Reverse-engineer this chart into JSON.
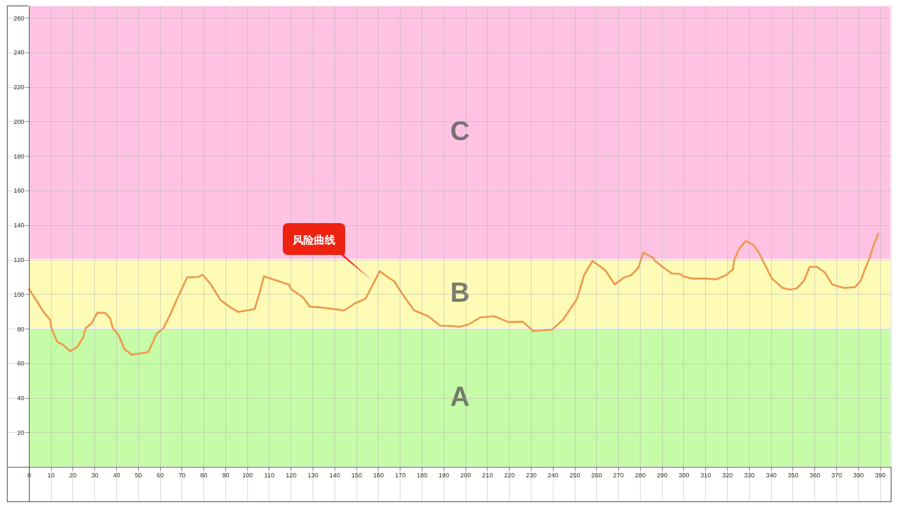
{
  "chart_data": {
    "type": "line",
    "xlim": [
      -10,
      395
    ],
    "ylim": [
      -20,
      267
    ],
    "xticks": [
      0,
      10,
      20,
      30,
      40,
      50,
      60,
      70,
      80,
      90,
      100,
      110,
      120,
      130,
      140,
      150,
      160,
      170,
      180,
      190,
      200,
      210,
      220,
      230,
      240,
      250,
      260,
      270,
      280,
      290,
      300,
      310,
      320,
      330,
      340,
      350,
      360,
      370,
      380,
      390
    ],
    "yticks": [
      20,
      40,
      60,
      80,
      100,
      120,
      140,
      160,
      180,
      200,
      220,
      240,
      260
    ],
    "grid": true,
    "marker": "none",
    "line_style": "solid",
    "bands": [
      {
        "axis": "y",
        "from": 0,
        "to": 80,
        "label": "A",
        "color": "#c6fba8"
      },
      {
        "axis": "y",
        "from": 80,
        "to": 120,
        "label": "B",
        "color": "#fdfbb6"
      },
      {
        "axis": "y",
        "from": 120,
        "to": 267,
        "label": "C",
        "color": "#fec3e2"
      }
    ],
    "annotations": [
      "风险曲线"
    ],
    "series": [
      {
        "color": "#f0984a",
        "x": [
          0,
          4.3,
          6.5,
          9.7,
          10.3,
          13,
          15.2,
          19,
          22.2,
          24.9,
          26,
          28.7,
          31.4,
          35.2,
          37.3,
          38.4,
          41.1,
          43.8,
          47.1,
          54.7,
          58.5,
          61.7,
          64.9,
          68.2,
          72.5,
          77.9,
          79.6,
          83.4,
          87.7,
          92,
          95.8,
          103.4,
          105.6,
          107.7,
          119.1,
          120.2,
          125.6,
          128.8,
          133.2,
          144.5,
          149.4,
          154.3,
          157,
          160.8,
          164.6,
          167.3,
          171.1,
          176.5,
          183,
          188.4,
          194.9,
          197,
          201.4,
          206.8,
          213.3,
          219.8,
          226.3,
          231.1,
          239.8,
          244.7,
          251.2,
          254.4,
          258.2,
          261.4,
          264.2,
          268.5,
          272.8,
          276,
          279.3,
          281.5,
          285.8,
          286.9,
          291.2,
          294.5,
          298.3,
          299.9,
          304.2,
          309.6,
          315,
          319.4,
          322.6,
          323.2,
          325.3,
          328.5,
          331.8,
          334.5,
          336.1,
          340.5,
          345.4,
          348.6,
          351.8,
          355.1,
          357.8,
          361.1,
          364.8,
          368.1,
          373.5,
          378.4,
          381.1,
          382.7,
          384.9,
          387,
          389.2
        ],
        "values": [
          103,
          94.7,
          89.9,
          85.2,
          80.4,
          72.2,
          71,
          67,
          69.5,
          75,
          80.4,
          83.1,
          89.3,
          89,
          85.8,
          80.4,
          76.3,
          68.2,
          65,
          66.4,
          77,
          80.4,
          88.6,
          98.1,
          109.7,
          110,
          111.3,
          105.6,
          96.7,
          92.7,
          89.7,
          91.3,
          100.1,
          110.3,
          105.6,
          102.9,
          98.1,
          92.7,
          92.4,
          90.6,
          94.7,
          97.4,
          104.2,
          113.3,
          109.7,
          107.6,
          100.1,
          90.6,
          87.2,
          81.8,
          81.5,
          81.1,
          82.4,
          86.5,
          87.2,
          83.8,
          84.1,
          78.6,
          79.5,
          85.2,
          97.4,
          111,
          119.2,
          116.4,
          113.7,
          105.6,
          109.7,
          111,
          115.4,
          124,
          121.2,
          119.2,
          115.1,
          112,
          111.7,
          110.3,
          109,
          109,
          108.6,
          111,
          114.4,
          119.9,
          126,
          130.7,
          128.7,
          124,
          119.9,
          109,
          103.6,
          102.6,
          103.3,
          107.6,
          115.8,
          115.8,
          112.4,
          105.6,
          103.6,
          104,
          107.6,
          113.1,
          119.9,
          128,
          135.1
        ]
      }
    ]
  }
}
